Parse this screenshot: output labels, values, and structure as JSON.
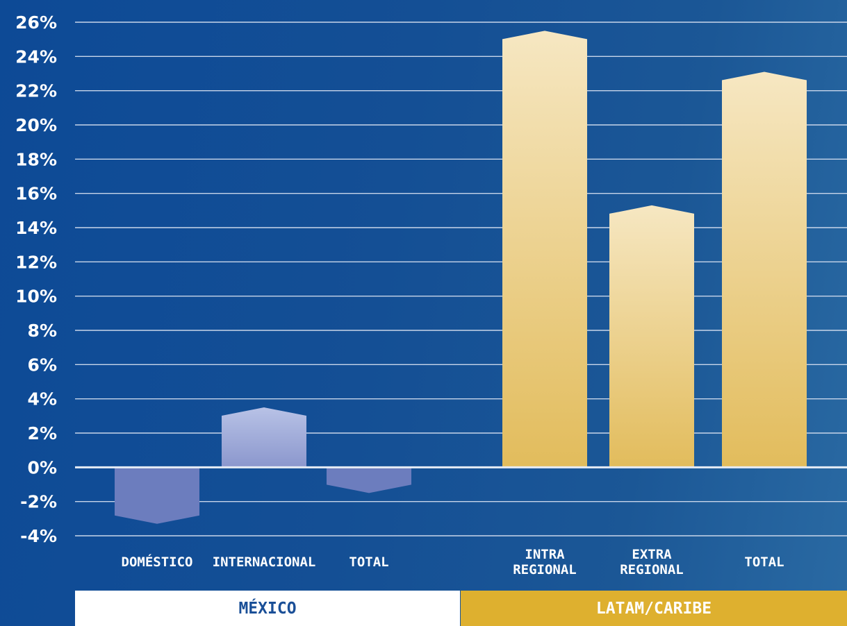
{
  "chart_data": {
    "type": "bar",
    "title": "",
    "xlabel": "",
    "ylabel": "",
    "ylim": [
      -4,
      26
    ],
    "y_ticks": [
      "26%",
      "24%",
      "22%",
      "20%",
      "18%",
      "16%",
      "14%",
      "12%",
      "10%",
      "8%",
      "6%",
      "4%",
      "2%",
      "0%",
      "-2%",
      "-4%"
    ],
    "y_tick_values": [
      26,
      24,
      22,
      20,
      18,
      16,
      14,
      12,
      10,
      8,
      6,
      4,
      2,
      0,
      -2,
      -4
    ],
    "grid": true,
    "groups": [
      {
        "name": "MÉXICO",
        "categories": [
          [
            "DOMÉSTICO"
          ],
          [
            "INTERNACIONAL"
          ],
          [
            "TOTAL"
          ]
        ],
        "values": [
          -3.3,
          3.5,
          -1.5
        ]
      },
      {
        "name": "LATAM/CARIBE",
        "categories": [
          [
            "INTRA",
            "REGIONAL"
          ],
          [
            "EXTRA",
            "REGIONAL"
          ],
          [
            "TOTAL"
          ]
        ],
        "values": [
          25.5,
          15.3,
          23.1
        ]
      }
    ],
    "colors": {
      "mexico_negative": "#6c7dbe",
      "mexico_positive_top": "#b8c2e6",
      "mexico_positive_bottom": "#8b97cd",
      "latam_top": "#f6e7c2",
      "latam_bottom": "#e2bc5c",
      "grid": "#c9d6ea",
      "zero_line": "#e6ecf5"
    }
  }
}
